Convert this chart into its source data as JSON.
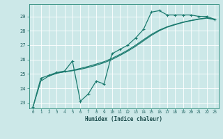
{
  "xlabel": "Humidex (Indice chaleur)",
  "bg_color": "#cce8e8",
  "grid_color": "#ffffff",
  "line_color": "#1a7a6e",
  "xlim": [
    -0.5,
    23.5
  ],
  "ylim": [
    22.6,
    29.85
  ],
  "xticks": [
    0,
    1,
    2,
    3,
    4,
    5,
    6,
    7,
    8,
    9,
    10,
    11,
    12,
    13,
    14,
    15,
    16,
    17,
    18,
    19,
    20,
    21,
    22,
    23
  ],
  "yticks": [
    23,
    24,
    25,
    26,
    27,
    28,
    29
  ],
  "line1_x": [
    0,
    1,
    2,
    3,
    4,
    5,
    6,
    7,
    8,
    9,
    10,
    11,
    12,
    13,
    14,
    15,
    16,
    17,
    18,
    19,
    20,
    21,
    22,
    23
  ],
  "line1_y": [
    22.7,
    24.7,
    24.9,
    25.1,
    25.2,
    25.9,
    23.1,
    23.6,
    24.5,
    24.3,
    26.4,
    26.7,
    27.0,
    27.5,
    28.1,
    29.3,
    29.4,
    29.1,
    29.1,
    29.1,
    29.1,
    29.0,
    29.0,
    28.8
  ],
  "line2_x": [
    0,
    1,
    2,
    3,
    4,
    5,
    6,
    7,
    8,
    9,
    10,
    11,
    12,
    13,
    14,
    15,
    16,
    17,
    18,
    19,
    20,
    21,
    22,
    23
  ],
  "line2_y": [
    22.7,
    24.5,
    24.85,
    25.05,
    25.15,
    25.25,
    25.38,
    25.52,
    25.68,
    25.85,
    26.08,
    26.35,
    26.65,
    27.0,
    27.38,
    27.75,
    28.05,
    28.28,
    28.45,
    28.6,
    28.72,
    28.82,
    28.9,
    28.8
  ],
  "line3_x": [
    2,
    3,
    4,
    5,
    6,
    7,
    8,
    9,
    10,
    11,
    12,
    13,
    14,
    15,
    16,
    17,
    18,
    19,
    20,
    21,
    22,
    23
  ],
  "line3_y": [
    24.85,
    25.05,
    25.15,
    25.22,
    25.32,
    25.45,
    25.6,
    25.78,
    26.0,
    26.28,
    26.58,
    26.92,
    27.3,
    27.68,
    28.0,
    28.25,
    28.42,
    28.58,
    28.7,
    28.8,
    28.88,
    28.78
  ]
}
